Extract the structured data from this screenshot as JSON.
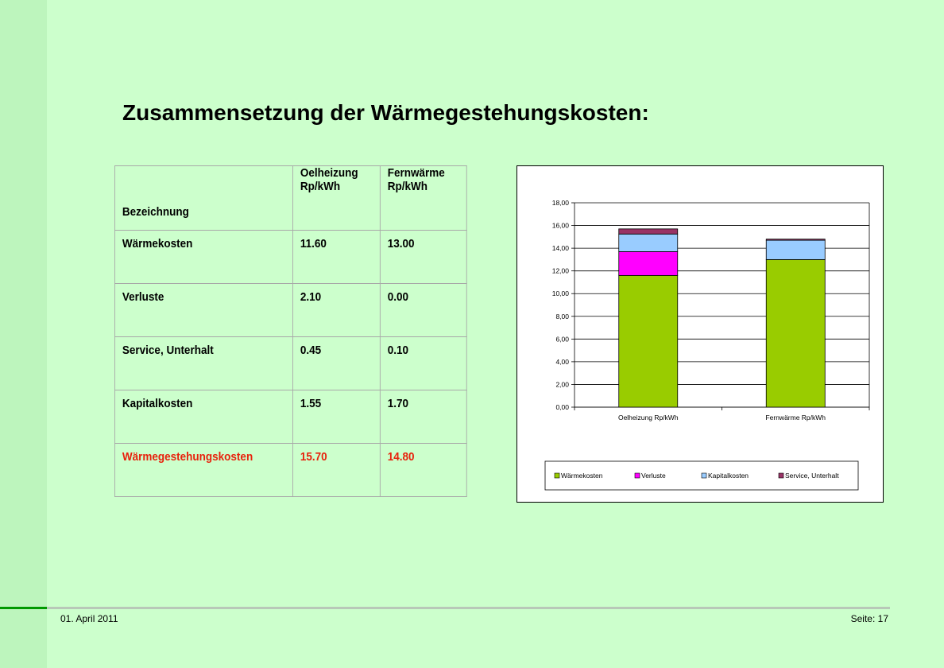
{
  "title": "Zusammensetzung der Wärmegestehungskosten:",
  "table": {
    "headers": [
      "Bezeichnung",
      "Oelheizung Rp/kWh",
      "Fernwärme Rp/kWh"
    ],
    "header_lines": {
      "col1": [
        "Oelheizung",
        "Rp/kWh"
      ],
      "col2": [
        "Fernwärme",
        "Rp/kWh"
      ]
    },
    "rows": [
      [
        "Wärmekosten",
        "11.60",
        "13.00"
      ],
      [
        "Verluste",
        "2.10",
        "0.00"
      ],
      [
        "Service, Unterhalt",
        "0.45",
        "0.10"
      ],
      [
        "Kapitalkosten",
        "1.55",
        "1.70"
      ]
    ],
    "total": [
      "Wärmegestehungskosten",
      "15.70",
      "14.80"
    ],
    "total_color": "#e8210c"
  },
  "chart_data": {
    "type": "bar",
    "stacked": true,
    "categories": [
      "Oelheizung Rp/kWh",
      "Fernwärme Rp/kWh"
    ],
    "series": [
      {
        "name": "Wärmekosten",
        "values": [
          11.6,
          13.0
        ],
        "color": "#99cc00"
      },
      {
        "name": "Verluste",
        "values": [
          2.1,
          0.0
        ],
        "color": "#ff00ff"
      },
      {
        "name": "Kapitalkosten",
        "values": [
          1.55,
          1.7
        ],
        "color": "#99ccff"
      },
      {
        "name": "Service, Unterhalt",
        "values": [
          0.45,
          0.1
        ],
        "color": "#993366"
      }
    ],
    "stack_order": [
      "Wärmekosten",
      "Verluste",
      "Kapitalkosten",
      "Service, Unterhalt"
    ],
    "ylim": [
      0,
      18
    ],
    "yticks": [
      "0,00",
      "2,00",
      "4,00",
      "6,00",
      "8,00",
      "10,00",
      "12,00",
      "14,00",
      "16,00",
      "18,00"
    ],
    "grid": true,
    "legend_position": "bottom"
  },
  "footer": {
    "date": "01. April 2011",
    "page": "Seite: 17"
  }
}
